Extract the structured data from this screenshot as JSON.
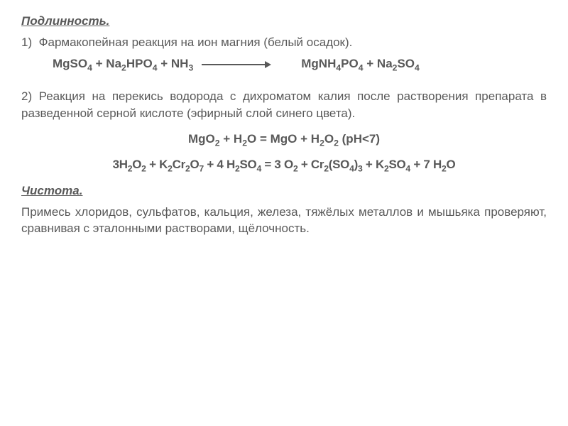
{
  "colors": {
    "text_main": "#595959",
    "background": "#ffffff"
  },
  "typography": {
    "body_fontsize": 17,
    "sub_scale": 0.72,
    "family": "Arial, sans-serif"
  },
  "authenticity": {
    "header": "Подлинность.",
    "item1_number": "1)",
    "item1_text": "Фармакопейная реакция на ион магния (белый осадок).",
    "reaction1_left1": "MgSO",
    "reaction1_left1_sub": "4",
    "reaction1_plus1": " + Na",
    "reaction1_left2_sub": "2",
    "reaction1_left2b": "HPO",
    "reaction1_left2b_sub": "4",
    "reaction1_plus2": " + NH",
    "reaction1_left3_sub": "3",
    "reaction1_right1": "MgNH",
    "reaction1_right1_sub": "4",
    "reaction1_right1b": "PO",
    "reaction1_right1b_sub": "4",
    "reaction1_plus3": "  + Na",
    "reaction1_right2_sub": "2",
    "reaction1_right2b": "SO",
    "reaction1_right2b_sub": "4",
    "item2_number": "2)",
    "item2_text": "Реакция на перекись водорода с дихроматом калия после растворения препарата в разведенной серной кислоте (эфирный слой синего цвета).",
    "reaction2_text": "MgO",
    "reaction2_sub1": "2",
    "reaction2_plus1": " + H",
    "reaction2_sub2": "2",
    "reaction2_o": "O = MgO + H",
    "reaction2_sub3": "2",
    "reaction2_o2": "O",
    "reaction2_sub4": "2",
    "reaction2_ph": " (pH<7)",
    "reaction3_a": "3H",
    "reaction3_s1": "2",
    "reaction3_b": "O",
    "reaction3_s2": "2",
    "reaction3_c": " + K",
    "reaction3_s3": "2",
    "reaction3_d": "Cr",
    "reaction3_s4": "2",
    "reaction3_e": "O",
    "reaction3_s5": "7",
    "reaction3_f": " + 4 H",
    "reaction3_s6": "2",
    "reaction3_g": "SO",
    "reaction3_s7": "4",
    "reaction3_h": " = 3 O",
    "reaction3_s8": "2",
    "reaction3_i": " + Cr",
    "reaction3_s9": "2",
    "reaction3_j": "(SO",
    "reaction3_s10": "4",
    "reaction3_k": ")",
    "reaction3_s11": "3",
    "reaction3_l": " + K",
    "reaction3_s12": "2",
    "reaction3_m": "SO",
    "reaction3_s13": "4",
    "reaction3_n": " + 7 H",
    "reaction3_s14": "2",
    "reaction3_o": "O"
  },
  "purity": {
    "header": "Чистота.",
    "text": "Примесь хлоридов, сульфатов, кальция, железа, тяжёлых металлов и мышьяка проверяют, сравнивая с эталонными растворами, щёлочность."
  }
}
